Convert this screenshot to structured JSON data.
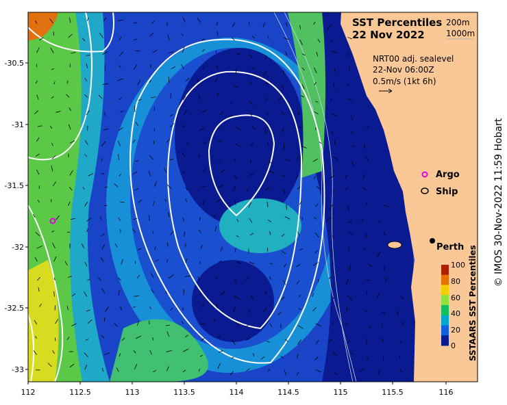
{
  "title": "SST Percentiles",
  "date": "22 Nov 2022",
  "isobaths": [
    "200m",
    "1000m"
  ],
  "sealevel_info": [
    "NRT00 adj. sealevel",
    "22-Nov 06:00Z",
    "0.5m/s (1kt 6h)"
  ],
  "legend": {
    "argo": "Argo",
    "ship": "Ship"
  },
  "city": "Perth",
  "colorbar": {
    "title": "SSTAARS SST Percentiles",
    "ticks": [
      "100",
      "80",
      "60",
      "40",
      "20",
      "0"
    ],
    "colors": [
      "#b02000",
      "#e87000",
      "#f0d000",
      "#90e040",
      "#10c060",
      "#00a8d0",
      "#1060e0",
      "#0a1a90"
    ]
  },
  "copyright": "© IMOS 30-Nov-2022 11:59 Hobart",
  "axes": {
    "x_ticks": [
      "112",
      "112.5",
      "113",
      "113.5",
      "114",
      "114.5",
      "115",
      "115.5",
      "116"
    ],
    "y_ticks": [
      "-30.5",
      "-31",
      "-31.5",
      "-32",
      "-32.5",
      "-33"
    ]
  },
  "colors": {
    "land": "#fac896",
    "deep_blue": "#0a1a90",
    "contour": "#ffffff",
    "argo_marker": "#e000e0"
  }
}
